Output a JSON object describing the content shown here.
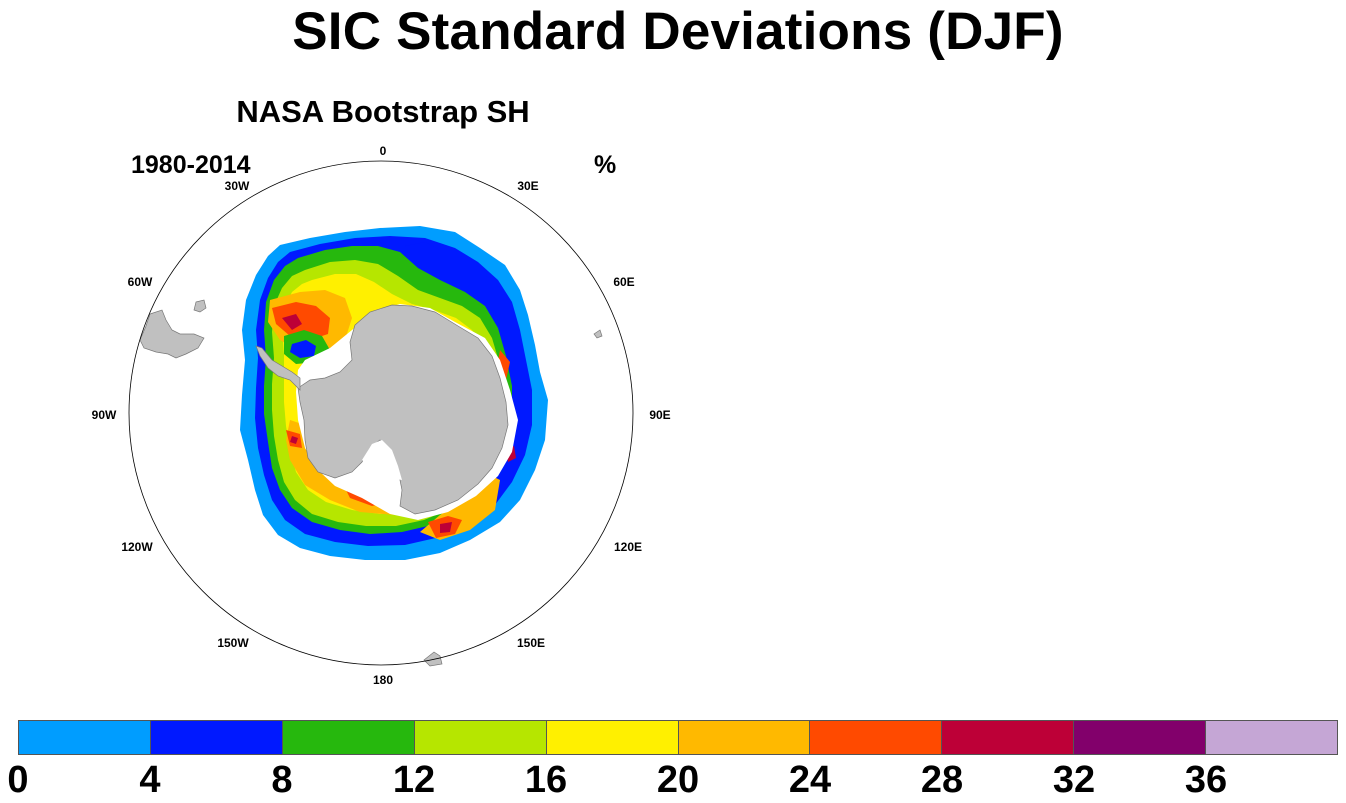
{
  "title": "SIC Standard Deviations (DJF)",
  "panel": {
    "subtitle": "NASA Bootstrap SH",
    "left_label": "1980-2014",
    "right_label": "%"
  },
  "map": {
    "projection": "south-polar-stereographic",
    "longitude_labels": [
      "0",
      "30E",
      "60E",
      "90E",
      "120E",
      "150E",
      "180",
      "150W",
      "120W",
      "90W",
      "60W",
      "30W"
    ],
    "land_color": "#c0c0c0",
    "ocean_color": "#ffffff"
  },
  "colorbar": {
    "colors": [
      "#009dff",
      "#0019ff",
      "#26b80d",
      "#b6e600",
      "#fff000",
      "#ffb900",
      "#ff4a00",
      "#bd0037",
      "#82006b",
      "#c5a6d5"
    ],
    "labels": [
      "0",
      "4",
      "8",
      "12",
      "16",
      "20",
      "24",
      "28",
      "32",
      "36"
    ]
  }
}
